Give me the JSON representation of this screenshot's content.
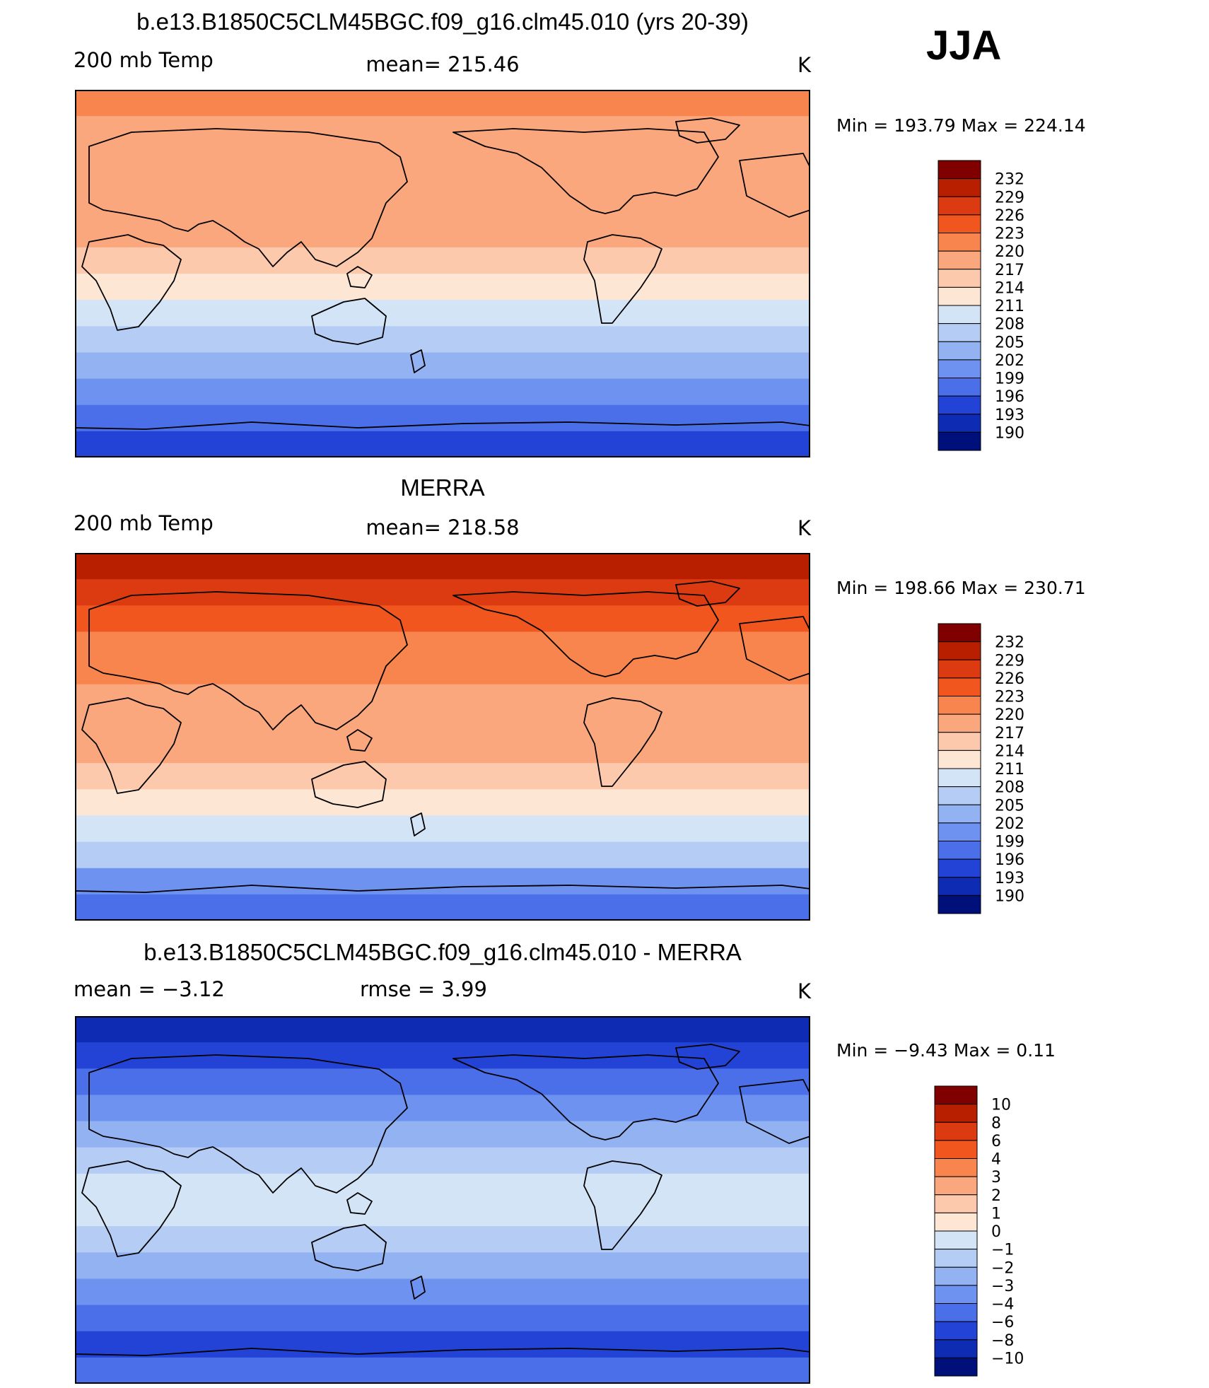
{
  "season": "JJA",
  "panels": [
    {
      "title": "b.e13.B1850C5CLM45BGC.f09_g16.clm45.010 (yrs 20-39)",
      "left_label": "200 mb Temp",
      "center_label": "mean= 215.46",
      "units": "K",
      "minmax": "Min  =  193.79  Max  =  224.14",
      "colorbar_labels": [
        "232",
        "229",
        "226",
        "223",
        "220",
        "217",
        "214",
        "211",
        "208",
        "205",
        "202",
        "199",
        "196",
        "193",
        "190"
      ]
    },
    {
      "title": "MERRA",
      "left_label": "200 mb Temp",
      "center_label": "mean= 218.58",
      "units": "K",
      "minmax": "Min  =  198.66  Max  =  230.71",
      "colorbar_labels": [
        "232",
        "229",
        "226",
        "223",
        "220",
        "217",
        "214",
        "211",
        "208",
        "205",
        "202",
        "199",
        "196",
        "193",
        "190"
      ]
    },
    {
      "title": "b.e13.B1850C5CLM45BGC.f09_g16.clm45.010 - MERRA",
      "left_label": "mean =    −3.12",
      "center_label": "rmse =     3.99",
      "units": "K",
      "minmax": "Min  =   −9.43  Max  =     0.11",
      "colorbar_labels": [
        "10",
        "8",
        "6",
        "4",
        "3",
        "2",
        "1",
        "0",
        "−1",
        "−2",
        "−3",
        "−4",
        "−6",
        "−8",
        "−10"
      ]
    }
  ],
  "colorbar_colors": [
    "#800000",
    "#b81e00",
    "#dc3a10",
    "#f2561f",
    "#f8844e",
    "#fba77e",
    "#fcc9ad",
    "#fde6d4",
    "#d2e4f6",
    "#b5cdf4",
    "#93b2f2",
    "#6e92ef",
    "#4a6fe8",
    "#2243d6",
    "#0d2bb3",
    "#00107a"
  ],
  "map_field_bands": [
    {
      "name": "panel-1",
      "colors": [
        "#f8844e",
        "#fba77e",
        "#fba77e",
        "#fba77e",
        "#fba77e",
        "#fba77e",
        "#fcc9ad",
        "#fde6d4",
        "#d2e4f6",
        "#b5cdf4",
        "#93b2f2",
        "#6e92ef",
        "#4a6fe8",
        "#2243d6"
      ]
    },
    {
      "name": "panel-2",
      "colors": [
        "#b81e00",
        "#dc3a10",
        "#f2561f",
        "#f8844e",
        "#f8844e",
        "#fba77e",
        "#fba77e",
        "#fba77e",
        "#fcc9ad",
        "#fde6d4",
        "#d2e4f6",
        "#b5cdf4",
        "#6e92ef",
        "#4a6fe8"
      ]
    },
    {
      "name": "panel-3",
      "colors": [
        "#0d2bb3",
        "#2243d6",
        "#4a6fe8",
        "#6e92ef",
        "#93b2f2",
        "#b5cdf4",
        "#d2e4f6",
        "#d2e4f6",
        "#b5cdf4",
        "#93b2f2",
        "#6e92ef",
        "#4a6fe8",
        "#2243d6",
        "#4a6fe8"
      ]
    }
  ]
}
